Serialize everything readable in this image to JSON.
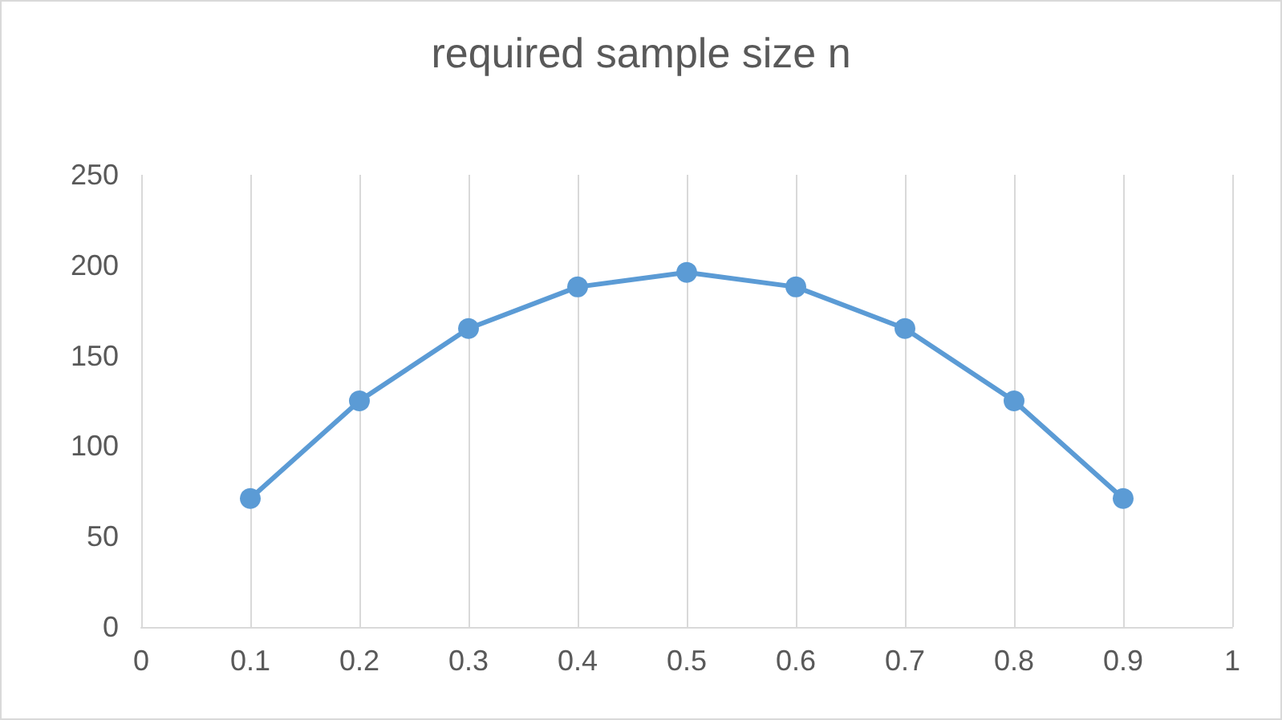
{
  "chart_data": {
    "type": "line",
    "title": "required sample size n",
    "x": [
      0.1,
      0.2,
      0.3,
      0.4,
      0.5,
      0.6,
      0.7,
      0.8,
      0.9
    ],
    "series": [
      {
        "color": "#5b9bd5",
        "values": [
          71,
          125,
          165,
          188,
          196,
          188,
          165,
          125,
          71
        ]
      }
    ],
    "xlim": [
      0,
      1
    ],
    "xticks": [
      0,
      0.1,
      0.2,
      0.3,
      0.4,
      0.5,
      0.6,
      0.7,
      0.8,
      0.9,
      1
    ],
    "ylim": [
      0,
      250
    ],
    "yticks": [
      0,
      50,
      100,
      150,
      200,
      250
    ],
    "grid": "x",
    "marker": "circle",
    "line_style": "solid"
  }
}
